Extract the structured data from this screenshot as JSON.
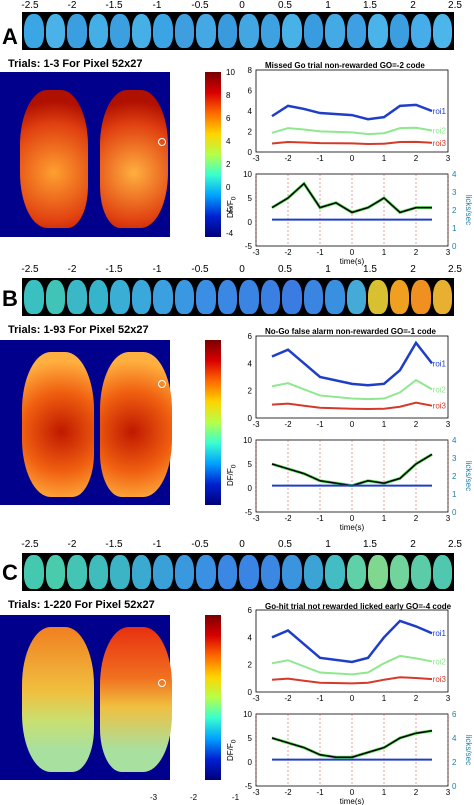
{
  "strip_ticks": [
    "-2.5",
    "-2",
    "-1.5",
    "-1",
    "-0.5",
    "0",
    "0.5",
    "1",
    "1.5",
    "2",
    "2.5"
  ],
  "colorbar_ticks": [
    "10",
    "8",
    "6",
    "4",
    "2",
    "0",
    "-2",
    "-4"
  ],
  "colorbar_label": "DF/F",
  "colorbar_label_sub": "0",
  "xaxis_label": "time(s)",
  "right_axis_label": "licks/sec",
  "footer_ticks": [
    "-3",
    "-2",
    "-1"
  ],
  "panels": [
    {
      "letter": "A",
      "trials_title": "Trials: 1-3 For Pixel 52x27",
      "subtitle": "Missed Go trial non-rewarded GO=-2 code",
      "legend": [
        "roi1",
        "roi2",
        "roi3"
      ],
      "top_yticks": [
        "8",
        "6",
        "4",
        "2",
        "0"
      ],
      "bottom_yticks": [
        "10",
        "5",
        "0",
        "-5"
      ],
      "bottom_rticks": [
        "4",
        "3",
        "2",
        "1",
        "0"
      ],
      "xticks": [
        "-3",
        "-2",
        "-1",
        "0",
        "1",
        "2",
        "3"
      ],
      "colors": {
        "roi1": "#1f3ec8",
        "roi2": "#8fe88f",
        "roi3": "#d43a2a",
        "lick": "#1c7fa8"
      }
    },
    {
      "letter": "B",
      "trials_title": "Trials: 1-93 For Pixel 52x27",
      "subtitle": "No-Go false alarm non-rewarded GO=-1 code",
      "legend": [
        "roi1",
        "roi2",
        "roi3"
      ],
      "top_yticks": [
        "6",
        "4",
        "2",
        "0"
      ],
      "bottom_yticks": [
        "10",
        "5",
        "0",
        "-5"
      ],
      "bottom_rticks": [
        "4",
        "3",
        "2",
        "1",
        "0"
      ],
      "xticks": [
        "-3",
        "-2",
        "-1",
        "0",
        "1",
        "2",
        "3"
      ],
      "colors": {
        "roi1": "#1f3ec8",
        "roi2": "#8fe88f",
        "roi3": "#d43a2a",
        "lick": "#1c7fa8"
      }
    },
    {
      "letter": "C",
      "trials_title": "Trials: 1-220 For Pixel 52x27",
      "subtitle": "Go-hit trial not rewarded licked early GO=-4 code",
      "legend": [
        "roi1",
        "roi2",
        "roi3"
      ],
      "top_yticks": [
        "6",
        "4",
        "2",
        "0"
      ],
      "bottom_yticks": [
        "10",
        "5",
        "0",
        "-5"
      ],
      "bottom_rticks": [
        "6",
        "4",
        "2",
        "0"
      ],
      "xticks": [
        "-3",
        "-2",
        "-1",
        "0",
        "1",
        "2",
        "3"
      ],
      "colors": {
        "roi1": "#1f3ec8",
        "roi2": "#8fe88f",
        "roi3": "#d43a2a",
        "lick": "#1c7fa8"
      }
    }
  ]
}
